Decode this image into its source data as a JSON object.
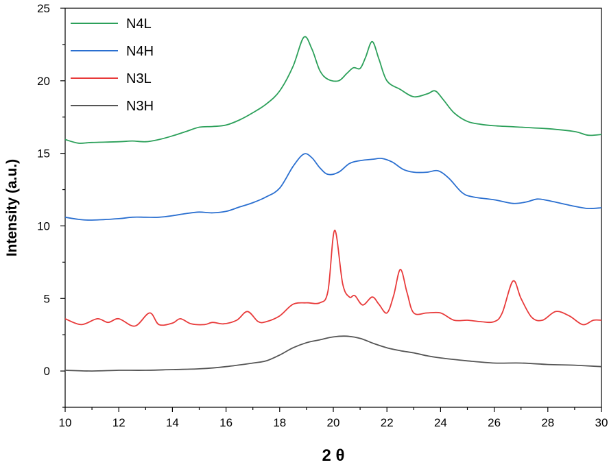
{
  "chart_data": {
    "type": "line",
    "xlabel": "2 θ",
    "ylabel": "Intensity (a.u.)",
    "xlim": [
      10,
      30
    ],
    "ylim": [
      -2.5,
      25
    ],
    "xticks": [
      10,
      12,
      14,
      16,
      18,
      20,
      22,
      24,
      26,
      28,
      30
    ],
    "yticks": [
      0,
      5,
      10,
      15,
      20,
      25
    ],
    "grid": false,
    "legend_position": "top-left",
    "series": [
      {
        "name": "N4L",
        "color": "#2ca05a",
        "points": [
          [
            10,
            15.95
          ],
          [
            10.5,
            15.7
          ],
          [
            11,
            15.75
          ],
          [
            12,
            15.8
          ],
          [
            12.5,
            15.85
          ],
          [
            13,
            15.8
          ],
          [
            13.5,
            15.95
          ],
          [
            14,
            16.2
          ],
          [
            14.5,
            16.5
          ],
          [
            15,
            16.8
          ],
          [
            15.5,
            16.85
          ],
          [
            16,
            16.95
          ],
          [
            16.5,
            17.3
          ],
          [
            17,
            17.8
          ],
          [
            17.5,
            18.4
          ],
          [
            18,
            19.3
          ],
          [
            18.5,
            21.0
          ],
          [
            18.9,
            23.0
          ],
          [
            19.2,
            22.2
          ],
          [
            19.5,
            20.7
          ],
          [
            19.8,
            20.1
          ],
          [
            20.2,
            20.0
          ],
          [
            20.5,
            20.5
          ],
          [
            20.75,
            20.9
          ],
          [
            21.0,
            20.85
          ],
          [
            21.2,
            21.6
          ],
          [
            21.45,
            22.7
          ],
          [
            21.7,
            21.5
          ],
          [
            22.0,
            20.0
          ],
          [
            22.5,
            19.4
          ],
          [
            23.0,
            18.9
          ],
          [
            23.5,
            19.1
          ],
          [
            23.8,
            19.3
          ],
          [
            24.1,
            18.7
          ],
          [
            24.5,
            17.8
          ],
          [
            25,
            17.2
          ],
          [
            25.5,
            17.0
          ],
          [
            26,
            16.9
          ],
          [
            27,
            16.8
          ],
          [
            27.5,
            16.75
          ],
          [
            28,
            16.7
          ],
          [
            29,
            16.5
          ],
          [
            29.5,
            16.25
          ],
          [
            30,
            16.3
          ]
        ]
      },
      {
        "name": "N4H",
        "color": "#2a6fd0",
        "points": [
          [
            10,
            10.6
          ],
          [
            10.5,
            10.45
          ],
          [
            11,
            10.4
          ],
          [
            12,
            10.5
          ],
          [
            12.5,
            10.6
          ],
          [
            13,
            10.6
          ],
          [
            13.5,
            10.6
          ],
          [
            14,
            10.7
          ],
          [
            14.5,
            10.85
          ],
          [
            15,
            10.95
          ],
          [
            15.5,
            10.9
          ],
          [
            16,
            11.0
          ],
          [
            16.5,
            11.3
          ],
          [
            17,
            11.6
          ],
          [
            17.5,
            12.0
          ],
          [
            18,
            12.6
          ],
          [
            18.5,
            14.1
          ],
          [
            18.9,
            14.95
          ],
          [
            19.2,
            14.7
          ],
          [
            19.5,
            14.0
          ],
          [
            19.8,
            13.55
          ],
          [
            20.2,
            13.7
          ],
          [
            20.6,
            14.3
          ],
          [
            21.0,
            14.5
          ],
          [
            21.5,
            14.6
          ],
          [
            21.8,
            14.65
          ],
          [
            22.2,
            14.4
          ],
          [
            22.6,
            13.9
          ],
          [
            23.0,
            13.7
          ],
          [
            23.5,
            13.7
          ],
          [
            23.9,
            13.8
          ],
          [
            24.3,
            13.3
          ],
          [
            24.8,
            12.3
          ],
          [
            25.2,
            12.0
          ],
          [
            26,
            11.8
          ],
          [
            26.7,
            11.55
          ],
          [
            27.2,
            11.65
          ],
          [
            27.6,
            11.85
          ],
          [
            28,
            11.75
          ],
          [
            29,
            11.35
          ],
          [
            29.5,
            11.2
          ],
          [
            30,
            11.25
          ]
        ]
      },
      {
        "name": "N3L",
        "color": "#e83a3a",
        "points": [
          [
            10,
            3.6
          ],
          [
            10.6,
            3.2
          ],
          [
            11.2,
            3.6
          ],
          [
            11.6,
            3.35
          ],
          [
            12.0,
            3.6
          ],
          [
            12.6,
            3.1
          ],
          [
            13.15,
            4.0
          ],
          [
            13.5,
            3.2
          ],
          [
            14,
            3.3
          ],
          [
            14.3,
            3.6
          ],
          [
            14.7,
            3.25
          ],
          [
            15.2,
            3.2
          ],
          [
            15.5,
            3.35
          ],
          [
            15.9,
            3.25
          ],
          [
            16.4,
            3.5
          ],
          [
            16.8,
            4.1
          ],
          [
            17.2,
            3.4
          ],
          [
            17.5,
            3.4
          ],
          [
            18.0,
            3.8
          ],
          [
            18.5,
            4.6
          ],
          [
            19.0,
            4.7
          ],
          [
            19.5,
            4.7
          ],
          [
            19.8,
            5.5
          ],
          [
            20.05,
            9.7
          ],
          [
            20.35,
            6.0
          ],
          [
            20.6,
            5.1
          ],
          [
            20.8,
            5.2
          ],
          [
            21.1,
            4.55
          ],
          [
            21.45,
            5.1
          ],
          [
            21.7,
            4.6
          ],
          [
            22.0,
            4.0
          ],
          [
            22.25,
            5.2
          ],
          [
            22.5,
            7.0
          ],
          [
            22.75,
            5.4
          ],
          [
            23.0,
            4.0
          ],
          [
            23.5,
            4.0
          ],
          [
            24.0,
            4.0
          ],
          [
            24.5,
            3.5
          ],
          [
            25,
            3.5
          ],
          [
            25.5,
            3.4
          ],
          [
            26.0,
            3.4
          ],
          [
            26.3,
            4.0
          ],
          [
            26.7,
            6.2
          ],
          [
            27.0,
            5.0
          ],
          [
            27.4,
            3.7
          ],
          [
            27.8,
            3.5
          ],
          [
            28.3,
            4.1
          ],
          [
            28.8,
            3.8
          ],
          [
            29.3,
            3.2
          ],
          [
            29.7,
            3.5
          ],
          [
            30,
            3.5
          ]
        ]
      },
      {
        "name": "N3H",
        "color": "#555555",
        "points": [
          [
            10,
            0.05
          ],
          [
            11,
            0.0
          ],
          [
            12,
            0.05
          ],
          [
            13,
            0.05
          ],
          [
            14,
            0.1
          ],
          [
            15,
            0.15
          ],
          [
            16,
            0.3
          ],
          [
            17,
            0.55
          ],
          [
            17.5,
            0.7
          ],
          [
            18,
            1.1
          ],
          [
            18.5,
            1.6
          ],
          [
            19,
            1.95
          ],
          [
            19.5,
            2.15
          ],
          [
            20,
            2.35
          ],
          [
            20.5,
            2.4
          ],
          [
            21,
            2.25
          ],
          [
            21.5,
            1.9
          ],
          [
            22,
            1.6
          ],
          [
            22.5,
            1.4
          ],
          [
            23,
            1.25
          ],
          [
            23.5,
            1.05
          ],
          [
            24,
            0.9
          ],
          [
            25,
            0.7
          ],
          [
            26,
            0.55
          ],
          [
            27,
            0.55
          ],
          [
            28,
            0.45
          ],
          [
            29,
            0.4
          ],
          [
            30,
            0.3
          ]
        ]
      }
    ]
  }
}
